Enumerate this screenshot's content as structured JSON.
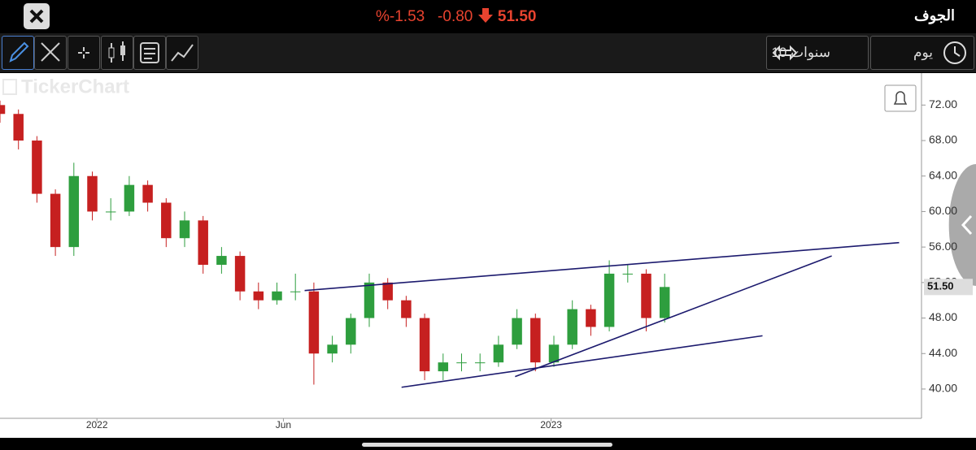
{
  "header": {
    "title": "الجوف",
    "change_percent": "%-1.53",
    "change": "-0.80",
    "price": "51.50"
  },
  "toolbar": {
    "period": "10 سنوات",
    "interval": "يوم"
  },
  "watermark": "TickerChart",
  "chart_data": {
    "type": "candlestick",
    "x": [
      0,
      2,
      4,
      6,
      8,
      10,
      12,
      14,
      16,
      18,
      20,
      22,
      24,
      26,
      28,
      30,
      32,
      34,
      36,
      38,
      40,
      42,
      44,
      46,
      48,
      50,
      52,
      54,
      56,
      58,
      60,
      62,
      64,
      66,
      68,
      70,
      72
    ],
    "open": [
      72,
      71,
      68,
      62,
      56,
      64,
      60,
      60,
      63,
      61,
      57,
      59,
      54,
      55,
      51,
      50,
      51,
      51,
      44,
      45,
      48,
      52,
      50,
      48,
      42,
      43,
      43,
      43,
      45,
      48,
      43,
      45,
      49,
      47,
      53,
      53,
      48
    ],
    "high": [
      72.5,
      71.5,
      68.5,
      62.5,
      65.5,
      64.5,
      61.5,
      64,
      63.5,
      61.5,
      60,
      59.5,
      56,
      55.5,
      52,
      52,
      53,
      52,
      46,
      48.5,
      53,
      52.5,
      50.5,
      48.5,
      44,
      44,
      44,
      46,
      49,
      48.5,
      46,
      50,
      49.5,
      54.5,
      54,
      53.5,
      53
    ],
    "low": [
      70,
      67,
      61,
      55,
      55,
      59,
      59,
      59.5,
      60,
      56,
      56,
      53,
      53,
      50,
      49,
      49.5,
      50,
      40.5,
      43,
      44,
      47,
      49,
      47,
      41,
      41,
      42,
      42,
      42.5,
      44.5,
      42,
      42.5,
      44.5,
      46,
      46.5,
      52,
      46.5,
      47.5
    ],
    "close": [
      71,
      68,
      62,
      56,
      64,
      60,
      60,
      63,
      61,
      57,
      59,
      54,
      55,
      51,
      50,
      51,
      51,
      44,
      45,
      48,
      52,
      50,
      48,
      42,
      43,
      43,
      43,
      45,
      48,
      43,
      45,
      49,
      47,
      53,
      53,
      48,
      51.5
    ],
    "up_color": "#2e9e3e",
    "down_color": "#c62020",
    "xlim": [
      0,
      100
    ],
    "ylim": [
      36.7,
      75.6
    ],
    "xticks": [
      {
        "value": 10.5,
        "label": "2022"
      },
      {
        "value": 30.7,
        "label": "Jun"
      },
      {
        "value": 59.7,
        "label": "2023"
      }
    ],
    "yticks": [
      {
        "value": 40,
        "label": "40.00"
      },
      {
        "value": 44,
        "label": "44.00"
      },
      {
        "value": 48,
        "label": "48.00"
      },
      {
        "value": 52,
        "label": "52.00"
      },
      {
        "value": 56,
        "label": "56.00"
      },
      {
        "value": 60,
        "label": "60.00"
      },
      {
        "value": 64,
        "label": "64.00"
      },
      {
        "value": 68,
        "label": "68.00"
      },
      {
        "value": 72,
        "label": "72.00"
      }
    ],
    "last_price": {
      "value": 51.5,
      "label": "51.50"
    },
    "trendline_color": "#1c1a6e",
    "trendlines": [
      {
        "x": [
          33.0,
          97.4
        ],
        "y": [
          51.1,
          56.5
        ]
      },
      {
        "x": [
          55.8,
          90.1
        ],
        "y": [
          41.4,
          55.0
        ]
      },
      {
        "x": [
          43.5,
          82.6
        ],
        "y": [
          40.2,
          46.0
        ]
      }
    ]
  }
}
